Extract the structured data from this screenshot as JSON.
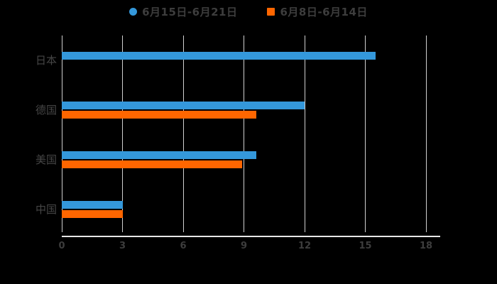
{
  "background_color": "#000000",
  "text_color": "#3d3d3d",
  "grid_color": "#d0d0d0",
  "axis_color": "#e6e6e6",
  "legend": {
    "items": [
      {
        "label": "6月15日-6月21日",
        "marker": "circle",
        "color": "#3498db"
      },
      {
        "label": "6月8日-6月14日",
        "marker": "square",
        "color": "#ff6600"
      }
    ]
  },
  "chart_data": {
    "type": "bar",
    "orientation": "horizontal",
    "title": "",
    "xlabel": "",
    "ylabel": "",
    "categories": [
      "日本",
      "德国",
      "美国",
      "中国"
    ],
    "series": [
      {
        "name": "6月15日-6月21日",
        "color": "#3498db",
        "marker": "circle",
        "values": [
          15.5,
          12,
          9.6,
          3
        ]
      },
      {
        "name": "6月8日-6月14日",
        "color": "#ff6600",
        "marker": "square",
        "values": [
          null,
          9.6,
          8.9,
          3
        ]
      }
    ],
    "x_ticks": [
      0,
      3,
      6,
      9,
      12,
      15,
      18
    ],
    "xlim": [
      0,
      18.7
    ],
    "grid": true,
    "legend_position": "top"
  }
}
